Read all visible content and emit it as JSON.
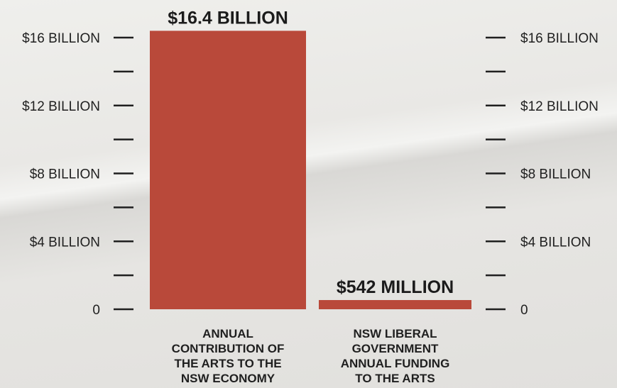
{
  "colors": {
    "bar": "#b9493a",
    "text": "#1f1f1f",
    "paper": "#e7e6e3"
  },
  "chart_data": {
    "type": "bar",
    "categories": [
      [
        "ANNUAL",
        "CONTRIBUTION OF",
        "THE ARTS TO THE",
        "NSW ECONOMY"
      ],
      [
        "NSW LIBERAL",
        "GOVERNMENT",
        "ANNUAL FUNDING",
        "TO THE ARTS"
      ]
    ],
    "values": [
      16.4,
      0.542
    ],
    "value_labels": [
      "$16.4 BILLION",
      "$542 MILLION"
    ],
    "unit": "billion AUD",
    "ylim": [
      0,
      16
    ],
    "major_ticks": [
      {
        "value": 0,
        "left": "0",
        "right": "0"
      },
      {
        "value": 4,
        "left": "$4 BILLION",
        "right": "$4 BILLION"
      },
      {
        "value": 8,
        "left": "$8 BILLION",
        "right": "$8 BILLION"
      },
      {
        "value": 12,
        "left": "$12 BILLION",
        "right": "$12 BILLION"
      },
      {
        "value": 16,
        "left": "$16 BILLION",
        "right": "$16 BILLION"
      }
    ],
    "minor_ticks": [
      2,
      6,
      10,
      14
    ],
    "grid": false,
    "legend": "none"
  }
}
